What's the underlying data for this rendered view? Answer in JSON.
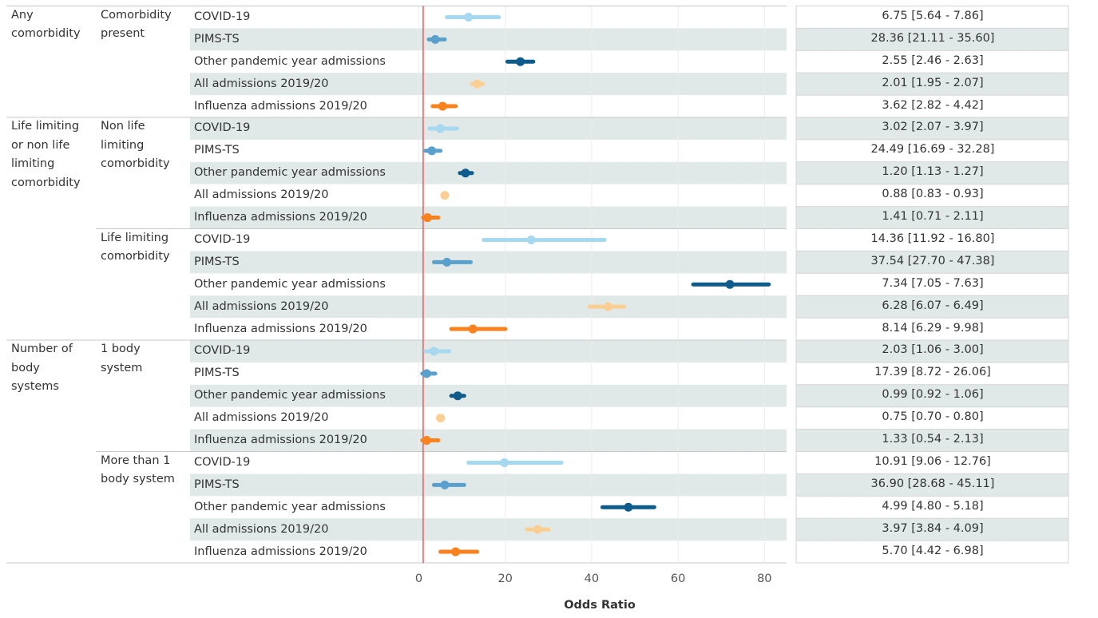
{
  "colors": {
    "covid": "#a6d8f0",
    "pims": "#5aa0cc",
    "other_pandemic": "#0d5c8c",
    "all_2019": "#fbcf92",
    "influenza": "#f9821f",
    "reference_line": "#e8595b",
    "row_band": "#e1e8e8"
  },
  "groups": [
    {
      "label": "Any comorbidity",
      "label_lines": [
        "Any",
        "comorbidity"
      ],
      "subgroups": [
        {
          "label": "Comorbidity present",
          "label_lines": [
            "Comorbidity",
            "present"
          ]
        }
      ]
    },
    {
      "label": "Life limiting or non life limiting comorbidity",
      "label_lines": [
        "Life limiting",
        "or non life",
        "limiting",
        "comorbidity"
      ],
      "subgroups": [
        {
          "label": "Non life limiting comorbidity",
          "label_lines": [
            "Non life",
            "limiting",
            "comorbidity"
          ]
        },
        {
          "label": "Life limiting comorbidity",
          "label_lines": [
            "Life limiting",
            "comorbidity"
          ]
        }
      ]
    },
    {
      "label": "Number of body systems",
      "label_lines": [
        "Number of",
        "body",
        "systems"
      ],
      "subgroups": [
        {
          "label": "1 body system",
          "label_lines": [
            "1 body",
            "system"
          ]
        },
        {
          "label": "More than 1 body system",
          "label_lines": [
            "More than 1",
            "body system"
          ]
        }
      ]
    }
  ],
  "chart_data": {
    "type": "forest",
    "xlabel": "Odds Ratio",
    "xlim": [
      0,
      85
    ],
    "xticks": [
      "0",
      "20",
      "40",
      "60",
      "80"
    ],
    "reference_line": 1,
    "grid": true,
    "series_names": [
      "COVID-19",
      "PIMS-TS",
      "Other pandemic year admissions",
      "All admissions 2019/20",
      "Influenza admissions 2019/20"
    ],
    "rows": [
      {
        "group": "Any comorbidity",
        "subgroup": "Comorbidity present",
        "series": "COVID-19",
        "or": 11.5,
        "lo": 6.5,
        "hi": 18.5,
        "text": "6.75 [5.64 - 7.86]"
      },
      {
        "group": "Any comorbidity",
        "subgroup": "Comorbidity present",
        "series": "PIMS-TS",
        "or": 3.8,
        "lo": 2.3,
        "hi": 6.0,
        "text": "28.36 [21.11 - 35.60]"
      },
      {
        "group": "Any comorbidity",
        "subgroup": "Comorbidity present",
        "series": "Other pandemic year admissions",
        "or": 23.5,
        "lo": 20.5,
        "hi": 26.5,
        "text": "2.55 [2.46 - 2.63]"
      },
      {
        "group": "Any comorbidity",
        "subgroup": "Comorbidity present",
        "series": "All admissions 2019/20",
        "or": 13.5,
        "lo": 12.3,
        "hi": 14.8,
        "text": "2.01 [1.95 - 2.07]"
      },
      {
        "group": "Any comorbidity",
        "subgroup": "Comorbidity present",
        "series": "Influenza admissions 2019/20",
        "or": 5.5,
        "lo": 3.2,
        "hi": 8.5,
        "text": "3.62 [2.82 - 4.42]"
      },
      {
        "group": "Life limiting or non life limiting comorbidity",
        "subgroup": "Non life limiting comorbidity",
        "series": "COVID-19",
        "or": 5.0,
        "lo": 2.5,
        "hi": 8.8,
        "text": "3.02 [2.07 - 3.97]"
      },
      {
        "group": "Life limiting or non life limiting comorbidity",
        "subgroup": "Non life limiting comorbidity",
        "series": "PIMS-TS",
        "or": 3.0,
        "lo": 1.5,
        "hi": 5.0,
        "text": "24.49 [16.69 - 32.28]"
      },
      {
        "group": "Life limiting or non life limiting comorbidity",
        "subgroup": "Non life limiting comorbidity",
        "series": "Other pandemic year admissions",
        "or": 10.8,
        "lo": 9.5,
        "hi": 12.3,
        "text": "1.20 [1.13 - 1.27]"
      },
      {
        "group": "Life limiting or non life limiting comorbidity",
        "subgroup": "Non life limiting comorbidity",
        "series": "All admissions 2019/20",
        "or": 6.0,
        "lo": 5.6,
        "hi": 6.4,
        "text": "0.88 [0.83 - 0.93]"
      },
      {
        "group": "Life limiting or non life limiting comorbidity",
        "subgroup": "Non life limiting comorbidity",
        "series": "Influenza admissions 2019/20",
        "or": 2.0,
        "lo": 1.0,
        "hi": 4.5,
        "text": "1.41 [0.71 - 2.11]"
      },
      {
        "group": "Life limiting or non life limiting comorbidity",
        "subgroup": "Life limiting comorbidity",
        "series": "COVID-19",
        "or": 26.0,
        "lo": 15.0,
        "hi": 43.0,
        "text": "14.36 [11.92 - 16.80]"
      },
      {
        "group": "Life limiting or non life limiting comorbidity",
        "subgroup": "Life limiting comorbidity",
        "series": "PIMS-TS",
        "or": 6.5,
        "lo": 3.5,
        "hi": 12.0,
        "text": "37.54 [27.70 - 47.38]"
      },
      {
        "group": "Life limiting or non life limiting comorbidity",
        "subgroup": "Life limiting comorbidity",
        "series": "Other pandemic year admissions",
        "or": 72.0,
        "lo": 63.5,
        "hi": 81.0,
        "text": "7.34 [7.05 - 7.63]"
      },
      {
        "group": "Life limiting or non life limiting comorbidity",
        "subgroup": "Life limiting comorbidity",
        "series": "All admissions 2019/20",
        "or": 43.8,
        "lo": 39.5,
        "hi": 47.5,
        "text": "6.28 [6.07 - 6.49]"
      },
      {
        "group": "Life limiting or non life limiting comorbidity",
        "subgroup": "Life limiting comorbidity",
        "series": "Influenza admissions 2019/20",
        "or": 12.5,
        "lo": 7.5,
        "hi": 20.0,
        "text": "8.14 [6.29 - 9.98]"
      },
      {
        "group": "Number of body systems",
        "subgroup": "1 body system",
        "series": "COVID-19",
        "or": 3.5,
        "lo": 1.5,
        "hi": 7.0,
        "text": "2.03 [1.06 - 3.00]"
      },
      {
        "group": "Number of body systems",
        "subgroup": "1 body system",
        "series": "PIMS-TS",
        "or": 1.8,
        "lo": 0.8,
        "hi": 3.8,
        "text": "17.39 [8.72 - 26.06]"
      },
      {
        "group": "Number of body systems",
        "subgroup": "1 body system",
        "series": "Other pandemic year admissions",
        "or": 9.0,
        "lo": 7.5,
        "hi": 10.5,
        "text": "0.99 [0.92 - 1.06]"
      },
      {
        "group": "Number of body systems",
        "subgroup": "1 body system",
        "series": "All admissions 2019/20",
        "or": 5.0,
        "lo": 4.6,
        "hi": 5.4,
        "text": "0.75 [0.70 - 0.80]"
      },
      {
        "group": "Number of body systems",
        "subgroup": "1 body system",
        "series": "Influenza admissions 2019/20",
        "or": 1.8,
        "lo": 0.8,
        "hi": 4.5,
        "text": "1.33 [0.54 - 2.13]"
      },
      {
        "group": "Number of body systems",
        "subgroup": "More than 1 body system",
        "series": "COVID-19",
        "or": 19.8,
        "lo": 11.5,
        "hi": 33.0,
        "text": "10.91 [9.06 - 12.76]"
      },
      {
        "group": "Number of body systems",
        "subgroup": "More than 1 body system",
        "series": "PIMS-TS",
        "or": 6.0,
        "lo": 3.5,
        "hi": 10.5,
        "text": "36.90 [28.68 - 45.11]"
      },
      {
        "group": "Number of body systems",
        "subgroup": "More than 1 body system",
        "series": "Other pandemic year admissions",
        "or": 48.5,
        "lo": 42.5,
        "hi": 54.5,
        "text": "4.99 [4.80 - 5.18]"
      },
      {
        "group": "Number of body systems",
        "subgroup": "More than 1 body system",
        "series": "All admissions 2019/20",
        "or": 27.5,
        "lo": 25.0,
        "hi": 30.0,
        "text": "3.97 [3.84 - 4.09]"
      },
      {
        "group": "Number of body systems",
        "subgroup": "More than 1 body system",
        "series": "Influenza admissions 2019/20",
        "or": 8.5,
        "lo": 5.0,
        "hi": 13.5,
        "text": "5.70 [4.42 - 6.98]"
      }
    ]
  }
}
